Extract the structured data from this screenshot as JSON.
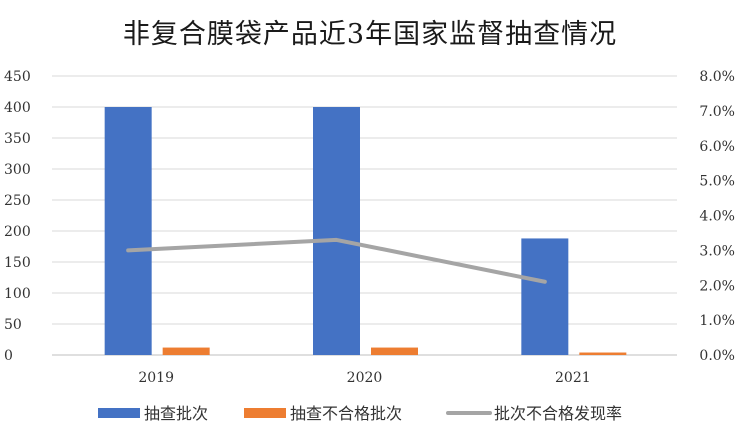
{
  "chart_data": {
    "type": "bar",
    "title": "非复合膜袋产品近3年国家监督抽查情况",
    "categories": [
      "2019",
      "2020",
      "2021"
    ],
    "series": [
      {
        "name": "抽查批次",
        "type": "bar",
        "axis": "left",
        "color": "#4472C4",
        "values": [
          400,
          400,
          188
        ]
      },
      {
        "name": "抽查不合格批次",
        "type": "bar",
        "axis": "left",
        "color": "#ED7D31",
        "values": [
          12,
          12,
          4
        ]
      },
      {
        "name": "批次不合格发现率",
        "type": "line",
        "axis": "right",
        "color": "#A5A5A5",
        "values": [
          0.03,
          0.033,
          0.021
        ]
      }
    ],
    "y_left": {
      "min": 0,
      "max": 450,
      "ticks": [
        "0",
        "50",
        "100",
        "150",
        "200",
        "250",
        "300",
        "350",
        "400",
        "450"
      ]
    },
    "y_right": {
      "min": 0,
      "max": 0.08,
      "ticks": [
        "0.0%",
        "1.0%",
        "2.0%",
        "3.0%",
        "4.0%",
        "5.0%",
        "6.0%",
        "7.0%",
        "8.0%"
      ]
    },
    "grid": true,
    "legend_position": "bottom"
  }
}
